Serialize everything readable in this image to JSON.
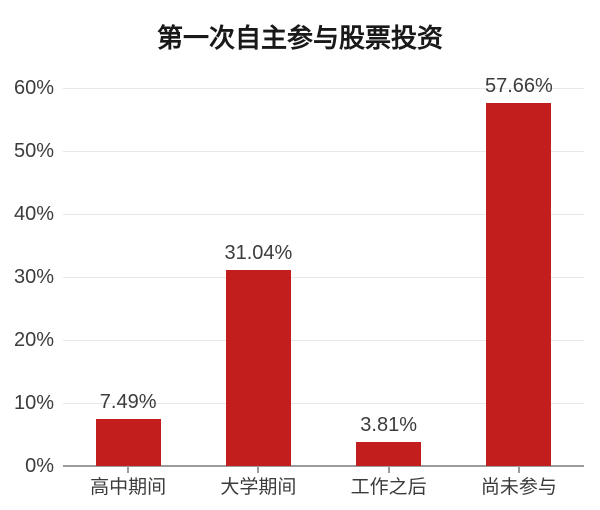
{
  "colors": {
    "bar": "#c21e1e",
    "grid": "#e8e8e8",
    "axis": "#9c9c9c",
    "title_text": "#191919",
    "label_text": "#3c3c3c",
    "background": "#ffffff"
  },
  "chart_data": {
    "type": "bar",
    "title": "第一次自主参与股票投资",
    "categories": [
      "高中期间",
      "大学期间",
      "工作之后",
      "尚未参与"
    ],
    "values": [
      7.49,
      31.04,
      3.81,
      57.66
    ],
    "value_labels": [
      "7.49%",
      "31.04%",
      "3.81%",
      "57.66%"
    ],
    "y_ticks": [
      "0%",
      "10%",
      "20%",
      "30%",
      "40%",
      "50%",
      "60%"
    ],
    "ylim": [
      0,
      60
    ],
    "xlabel": "",
    "ylabel": "",
    "grid": true,
    "legend": false
  }
}
